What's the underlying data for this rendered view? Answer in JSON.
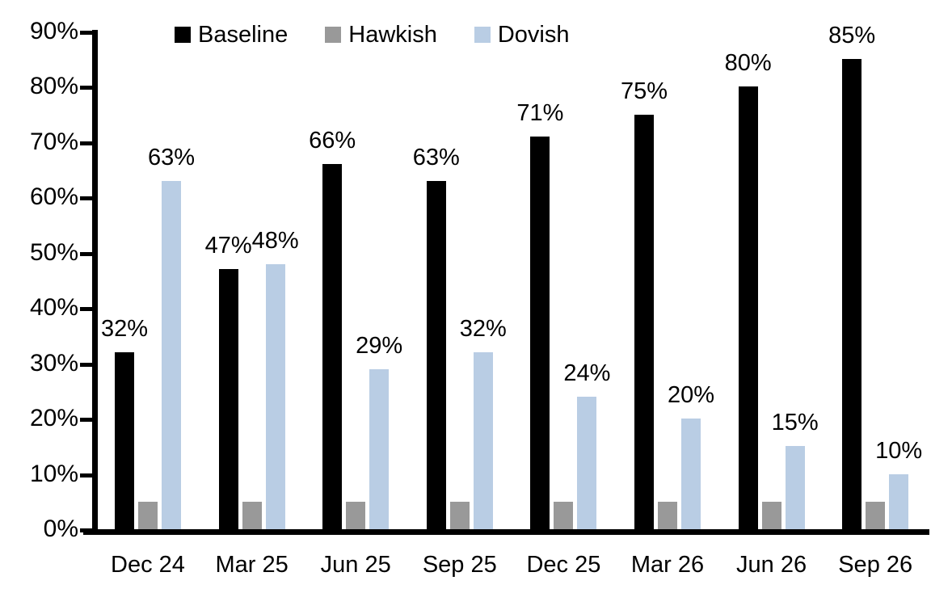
{
  "chart_data": {
    "type": "bar",
    "title": "",
    "xlabel": "",
    "ylabel": "",
    "categories": [
      "Dec 24",
      "Mar 25",
      "Jun 25",
      "Sep 25",
      "Dec 25",
      "Mar 26",
      "Jun 26",
      "Sep 26"
    ],
    "series": [
      {
        "name": "Baseline",
        "color": "#000000",
        "values": [
          32,
          47,
          66,
          63,
          71,
          75,
          80,
          85
        ],
        "labels_shown": true
      },
      {
        "name": "Hawkish",
        "color": "#999999",
        "values": [
          5,
          5,
          5,
          5,
          5,
          5,
          5,
          5
        ],
        "labels_shown": false
      },
      {
        "name": "Dovish",
        "color": "#B9CDE4",
        "values": [
          63,
          48,
          29,
          32,
          24,
          20,
          15,
          10
        ],
        "labels_shown": true
      }
    ],
    "label_format": "{v}%",
    "y_axis": {
      "min": 0,
      "max": 90,
      "step": 10,
      "tick_format": "{v}%",
      "tick_labels": [
        "0%",
        "10%",
        "20%",
        "30%",
        "40%",
        "50%",
        "60%",
        "70%",
        "80%",
        "90%"
      ]
    },
    "legend_position": "top",
    "grid": false,
    "axis_color": "#000000",
    "background_color": "#ffffff"
  }
}
